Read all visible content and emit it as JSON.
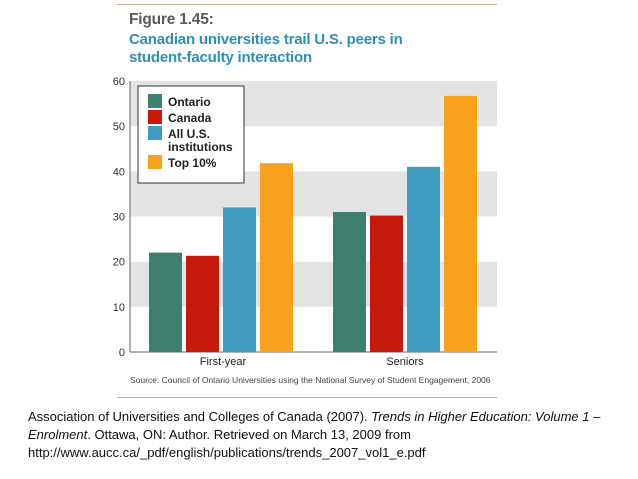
{
  "figure_label": "Figure 1.45:",
  "figure_title_line1": "Canadian universities trail U.S. peers in",
  "figure_title_line2": "student-faculty interaction",
  "source_note": "Source: Council of Ontario Universities using the National Survey of Student Engagement, 2006",
  "citation": {
    "part1": "Association of Universities and Colleges of Canada (2007). ",
    "italic": "Trends in Higher Education: Volume 1 – Enrolment",
    "part2": ". Ottawa, ON: Author. Retrieved on March 13, 2009 from",
    "url": "http://www.aucc.ca/_pdf/english/publications/trends_2007_vol1_e.pdf"
  },
  "chart_data": {
    "type": "bar",
    "categories": [
      "First-year",
      "Seniors"
    ],
    "series": [
      {
        "name": "Ontario",
        "values": [
          22,
          31
        ],
        "color": "#3f7f6e"
      },
      {
        "name": "Canada",
        "values": [
          21.3,
          30.2
        ],
        "color": "#c4190b"
      },
      {
        "name": "All U.S. institutions",
        "legend_lines": [
          "All U.S.",
          "institutions"
        ],
        "values": [
          32,
          41
        ],
        "color": "#3f9bbf"
      },
      {
        "name": "Top 10%",
        "values": [
          41.8,
          56.7
        ],
        "color": "#f7a11c"
      }
    ],
    "yticks": [
      0,
      10,
      20,
      30,
      40,
      50,
      60
    ],
    "ylim": [
      0,
      60
    ],
    "legend_position": "top-left",
    "band_colors": [
      "#e3e3e3",
      "#ffffff"
    ]
  }
}
